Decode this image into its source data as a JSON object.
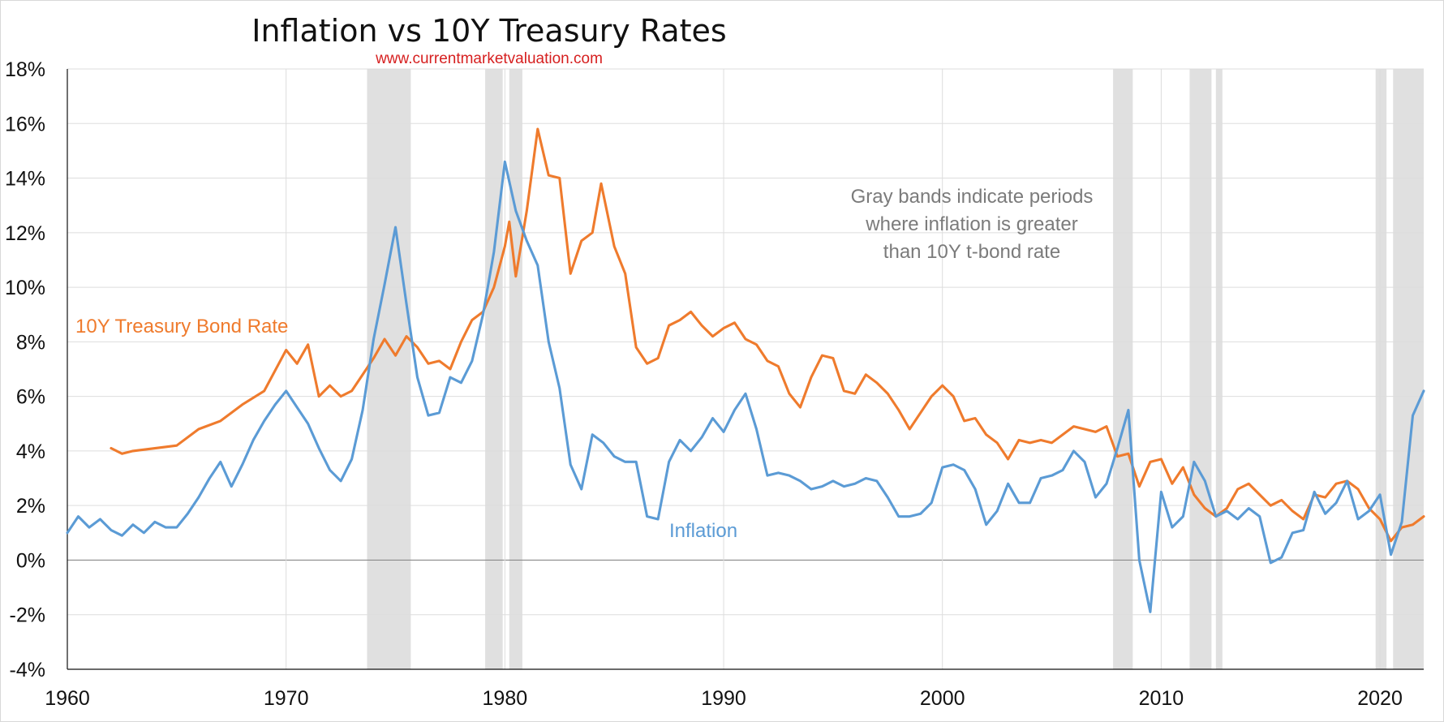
{
  "chart_data": {
    "type": "line",
    "title": "Inflation vs 10Y Treasury Rates",
    "subtitle": "www.currentmarketvaluation.com",
    "annotation": [
      "Gray bands indicate periods",
      "where inflation is greater",
      "than 10Y t-bond rate"
    ],
    "xlim": [
      1960,
      2022
    ],
    "ylim": [
      -4,
      18
    ],
    "x_ticks": [
      1960,
      1970,
      1980,
      1990,
      2000,
      2010,
      2020
    ],
    "x_tick_labels": [
      "1960",
      "1970",
      "1980",
      "1990",
      "2000",
      "2010",
      "2020"
    ],
    "y_ticks": [
      -4,
      -2,
      0,
      2,
      4,
      6,
      8,
      10,
      12,
      14,
      16,
      18
    ],
    "y_tick_labels": [
      "-4%",
      "-2%",
      "0%",
      "2%",
      "4%",
      "6%",
      "8%",
      "10%",
      "12%",
      "14%",
      "16%",
      "18%"
    ],
    "grid": true,
    "bands": [
      [
        1973.7,
        1975.7
      ],
      [
        1979.1,
        1979.9
      ],
      [
        1980.2,
        1980.8
      ],
      [
        2007.8,
        2008.7
      ],
      [
        2011.3,
        2012.3
      ],
      [
        2012.5,
        2012.8
      ],
      [
        2019.8,
        2020.3
      ],
      [
        2020.6,
        2022
      ]
    ],
    "series": [
      {
        "name": "10Y Treasury Bond Rate",
        "color": "#ef7b2d",
        "label_text": "10Y Treasury Bond Rate",
        "points": [
          [
            1962,
            4.1
          ],
          [
            1962.5,
            3.9
          ],
          [
            1963,
            4.0
          ],
          [
            1964,
            4.1
          ],
          [
            1965,
            4.2
          ],
          [
            1966,
            4.8
          ],
          [
            1967,
            5.1
          ],
          [
            1968,
            5.7
          ],
          [
            1969,
            6.2
          ],
          [
            1970,
            7.7
          ],
          [
            1970.5,
            7.2
          ],
          [
            1971,
            7.9
          ],
          [
            1971.5,
            6.0
          ],
          [
            1972,
            6.4
          ],
          [
            1972.5,
            6.0
          ],
          [
            1973,
            6.2
          ],
          [
            1973.5,
            6.8
          ],
          [
            1974,
            7.4
          ],
          [
            1974.5,
            8.1
          ],
          [
            1975,
            7.5
          ],
          [
            1975.5,
            8.2
          ],
          [
            1976,
            7.8
          ],
          [
            1976.5,
            7.2
          ],
          [
            1977,
            7.3
          ],
          [
            1977.5,
            7.0
          ],
          [
            1978,
            8.0
          ],
          [
            1978.5,
            8.8
          ],
          [
            1979,
            9.1
          ],
          [
            1979.5,
            10.0
          ],
          [
            1980,
            11.5
          ],
          [
            1980.2,
            12.4
          ],
          [
            1980.5,
            10.4
          ],
          [
            1981,
            12.8
          ],
          [
            1981.5,
            15.8
          ],
          [
            1982,
            14.1
          ],
          [
            1982.5,
            14.0
          ],
          [
            1983,
            10.5
          ],
          [
            1983.5,
            11.7
          ],
          [
            1984,
            12.0
          ],
          [
            1984.4,
            13.8
          ],
          [
            1985,
            11.5
          ],
          [
            1985.5,
            10.5
          ],
          [
            1986,
            7.8
          ],
          [
            1986.5,
            7.2
          ],
          [
            1987,
            7.4
          ],
          [
            1987.5,
            8.6
          ],
          [
            1988,
            8.8
          ],
          [
            1988.5,
            9.1
          ],
          [
            1989,
            8.6
          ],
          [
            1989.5,
            8.2
          ],
          [
            1990,
            8.5
          ],
          [
            1990.5,
            8.7
          ],
          [
            1991,
            8.1
          ],
          [
            1991.5,
            7.9
          ],
          [
            1992,
            7.3
          ],
          [
            1992.5,
            7.1
          ],
          [
            1993,
            6.1
          ],
          [
            1993.5,
            5.6
          ],
          [
            1994,
            6.7
          ],
          [
            1994.5,
            7.5
          ],
          [
            1995,
            7.4
          ],
          [
            1995.5,
            6.2
          ],
          [
            1996,
            6.1
          ],
          [
            1996.5,
            6.8
          ],
          [
            1997,
            6.5
          ],
          [
            1997.5,
            6.1
          ],
          [
            1998,
            5.5
          ],
          [
            1998.5,
            4.8
          ],
          [
            1999,
            5.4
          ],
          [
            1999.5,
            6.0
          ],
          [
            2000,
            6.4
          ],
          [
            2000.5,
            6.0
          ],
          [
            2001,
            5.1
          ],
          [
            2001.5,
            5.2
          ],
          [
            2002,
            4.6
          ],
          [
            2002.5,
            4.3
          ],
          [
            2003,
            3.7
          ],
          [
            2003.5,
            4.4
          ],
          [
            2004,
            4.3
          ],
          [
            2004.5,
            4.4
          ],
          [
            2005,
            4.3
          ],
          [
            2005.5,
            4.6
          ],
          [
            2006,
            4.9
          ],
          [
            2006.5,
            4.8
          ],
          [
            2007,
            4.7
          ],
          [
            2007.5,
            4.9
          ],
          [
            2008,
            3.8
          ],
          [
            2008.5,
            3.9
          ],
          [
            2009,
            2.7
          ],
          [
            2009.5,
            3.6
          ],
          [
            2010,
            3.7
          ],
          [
            2010.5,
            2.8
          ],
          [
            2011,
            3.4
          ],
          [
            2011.5,
            2.4
          ],
          [
            2012,
            1.9
          ],
          [
            2012.5,
            1.6
          ],
          [
            2013,
            1.9
          ],
          [
            2013.5,
            2.6
          ],
          [
            2014,
            2.8
          ],
          [
            2014.5,
            2.4
          ],
          [
            2015,
            2.0
          ],
          [
            2015.5,
            2.2
          ],
          [
            2016,
            1.8
          ],
          [
            2016.5,
            1.5
          ],
          [
            2017,
            2.4
          ],
          [
            2017.5,
            2.3
          ],
          [
            2018,
            2.8
          ],
          [
            2018.5,
            2.9
          ],
          [
            2019,
            2.6
          ],
          [
            2019.5,
            1.9
          ],
          [
            2020,
            1.5
          ],
          [
            2020.5,
            0.7
          ],
          [
            2021,
            1.2
          ],
          [
            2021.5,
            1.3
          ],
          [
            2022,
            1.6
          ]
        ]
      },
      {
        "name": "Inflation",
        "color": "#5b9bd5",
        "label_text": "Inflation",
        "points": [
          [
            1960,
            1.0
          ],
          [
            1960.5,
            1.6
          ],
          [
            1961,
            1.2
          ],
          [
            1961.5,
            1.5
          ],
          [
            1962,
            1.1
          ],
          [
            1962.5,
            0.9
          ],
          [
            1963,
            1.3
          ],
          [
            1963.5,
            1.0
          ],
          [
            1964,
            1.4
          ],
          [
            1964.5,
            1.2
          ],
          [
            1965,
            1.2
          ],
          [
            1965.5,
            1.7
          ],
          [
            1966,
            2.3
          ],
          [
            1966.5,
            3.0
          ],
          [
            1967,
            3.6
          ],
          [
            1967.5,
            2.7
          ],
          [
            1968,
            3.5
          ],
          [
            1968.5,
            4.4
          ],
          [
            1969,
            5.1
          ],
          [
            1969.5,
            5.7
          ],
          [
            1970,
            6.2
          ],
          [
            1970.5,
            5.6
          ],
          [
            1971,
            5.0
          ],
          [
            1971.5,
            4.1
          ],
          [
            1972,
            3.3
          ],
          [
            1972.5,
            2.9
          ],
          [
            1973,
            3.7
          ],
          [
            1973.5,
            5.5
          ],
          [
            1974,
            8.1
          ],
          [
            1974.5,
            10.1
          ],
          [
            1975,
            12.2
          ],
          [
            1975.5,
            9.4
          ],
          [
            1976,
            6.7
          ],
          [
            1976.5,
            5.3
          ],
          [
            1977,
            5.4
          ],
          [
            1977.5,
            6.7
          ],
          [
            1978,
            6.5
          ],
          [
            1978.5,
            7.3
          ],
          [
            1979,
            9.0
          ],
          [
            1979.5,
            11.3
          ],
          [
            1980,
            14.6
          ],
          [
            1980.5,
            12.8
          ],
          [
            1981,
            11.7
          ],
          [
            1981.5,
            10.8
          ],
          [
            1982,
            8.0
          ],
          [
            1982.5,
            6.3
          ],
          [
            1983,
            3.5
          ],
          [
            1983.5,
            2.6
          ],
          [
            1984,
            4.6
          ],
          [
            1984.5,
            4.3
          ],
          [
            1985,
            3.8
          ],
          [
            1985.5,
            3.6
          ],
          [
            1986,
            3.6
          ],
          [
            1986.5,
            1.6
          ],
          [
            1987,
            1.5
          ],
          [
            1987.5,
            3.6
          ],
          [
            1988,
            4.4
          ],
          [
            1988.5,
            4.0
          ],
          [
            1989,
            4.5
          ],
          [
            1989.5,
            5.2
          ],
          [
            1990,
            4.7
          ],
          [
            1990.5,
            5.5
          ],
          [
            1991,
            6.1
          ],
          [
            1991.5,
            4.8
          ],
          [
            1992,
            3.1
          ],
          [
            1992.5,
            3.2
          ],
          [
            1993,
            3.1
          ],
          [
            1993.5,
            2.9
          ],
          [
            1994,
            2.6
          ],
          [
            1994.5,
            2.7
          ],
          [
            1995,
            2.9
          ],
          [
            1995.5,
            2.7
          ],
          [
            1996,
            2.8
          ],
          [
            1996.5,
            3.0
          ],
          [
            1997,
            2.9
          ],
          [
            1997.5,
            2.3
          ],
          [
            1998,
            1.6
          ],
          [
            1998.5,
            1.6
          ],
          [
            1999,
            1.7
          ],
          [
            1999.5,
            2.1
          ],
          [
            2000,
            3.4
          ],
          [
            2000.5,
            3.5
          ],
          [
            2001,
            3.3
          ],
          [
            2001.5,
            2.6
          ],
          [
            2002,
            1.3
          ],
          [
            2002.5,
            1.8
          ],
          [
            2003,
            2.8
          ],
          [
            2003.5,
            2.1
          ],
          [
            2004,
            2.1
          ],
          [
            2004.5,
            3.0
          ],
          [
            2005,
            3.1
          ],
          [
            2005.5,
            3.3
          ],
          [
            2006,
            4.0
          ],
          [
            2006.5,
            3.6
          ],
          [
            2007,
            2.3
          ],
          [
            2007.5,
            2.8
          ],
          [
            2008,
            4.1
          ],
          [
            2008.5,
            5.5
          ],
          [
            2009,
            0.0
          ],
          [
            2009.5,
            -1.9
          ],
          [
            2010,
            2.5
          ],
          [
            2010.5,
            1.2
          ],
          [
            2011,
            1.6
          ],
          [
            2011.5,
            3.6
          ],
          [
            2012,
            2.9
          ],
          [
            2012.5,
            1.6
          ],
          [
            2013,
            1.8
          ],
          [
            2013.5,
            1.5
          ],
          [
            2014,
            1.9
          ],
          [
            2014.5,
            1.6
          ],
          [
            2015,
            -0.1
          ],
          [
            2015.5,
            0.1
          ],
          [
            2016,
            1.0
          ],
          [
            2016.5,
            1.1
          ],
          [
            2017,
            2.5
          ],
          [
            2017.5,
            1.7
          ],
          [
            2018,
            2.1
          ],
          [
            2018.5,
            2.9
          ],
          [
            2019,
            1.5
          ],
          [
            2019.5,
            1.8
          ],
          [
            2020,
            2.4
          ],
          [
            2020.5,
            0.2
          ],
          [
            2021,
            1.4
          ],
          [
            2021.5,
            5.3
          ],
          [
            2022,
            6.2
          ]
        ]
      }
    ]
  }
}
